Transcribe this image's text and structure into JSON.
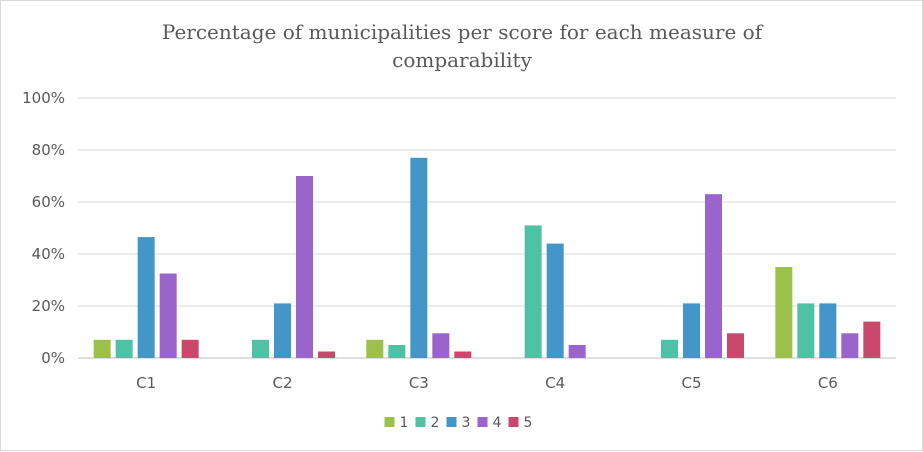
{
  "chart_data": {
    "type": "bar",
    "title": "Percentage of municipalities per score for each measure of comparability",
    "title_lines": [
      "Percentage of municipalities per score for each measure of",
      "comparability"
    ],
    "categories": [
      "C1",
      "C2",
      "C3",
      "C4",
      "C5",
      "C6"
    ],
    "series": [
      {
        "name": "1",
        "color": "#9cc14a",
        "values": [
          7,
          0,
          7,
          0,
          0,
          35
        ]
      },
      {
        "name": "2",
        "color": "#4fc2a5",
        "values": [
          7,
          7,
          5,
          51,
          7,
          21
        ]
      },
      {
        "name": "3",
        "color": "#4596c8",
        "values": [
          46.5,
          21,
          77,
          44,
          21,
          21
        ]
      },
      {
        "name": "4",
        "color": "#9b63cc",
        "values": [
          32.5,
          70,
          9.5,
          5,
          63,
          9.5
        ]
      },
      {
        "name": "5",
        "color": "#c9486b",
        "values": [
          7,
          2.5,
          2.5,
          0,
          9.5,
          14
        ]
      }
    ],
    "ylim": [
      0,
      100
    ],
    "yticks": [
      "0%",
      "20%",
      "40%",
      "60%",
      "80%",
      "100%"
    ],
    "ytick_values": [
      0,
      20,
      40,
      60,
      80,
      100
    ],
    "grid": true,
    "legend_position": "bottom",
    "xlabel": "",
    "ylabel": ""
  }
}
